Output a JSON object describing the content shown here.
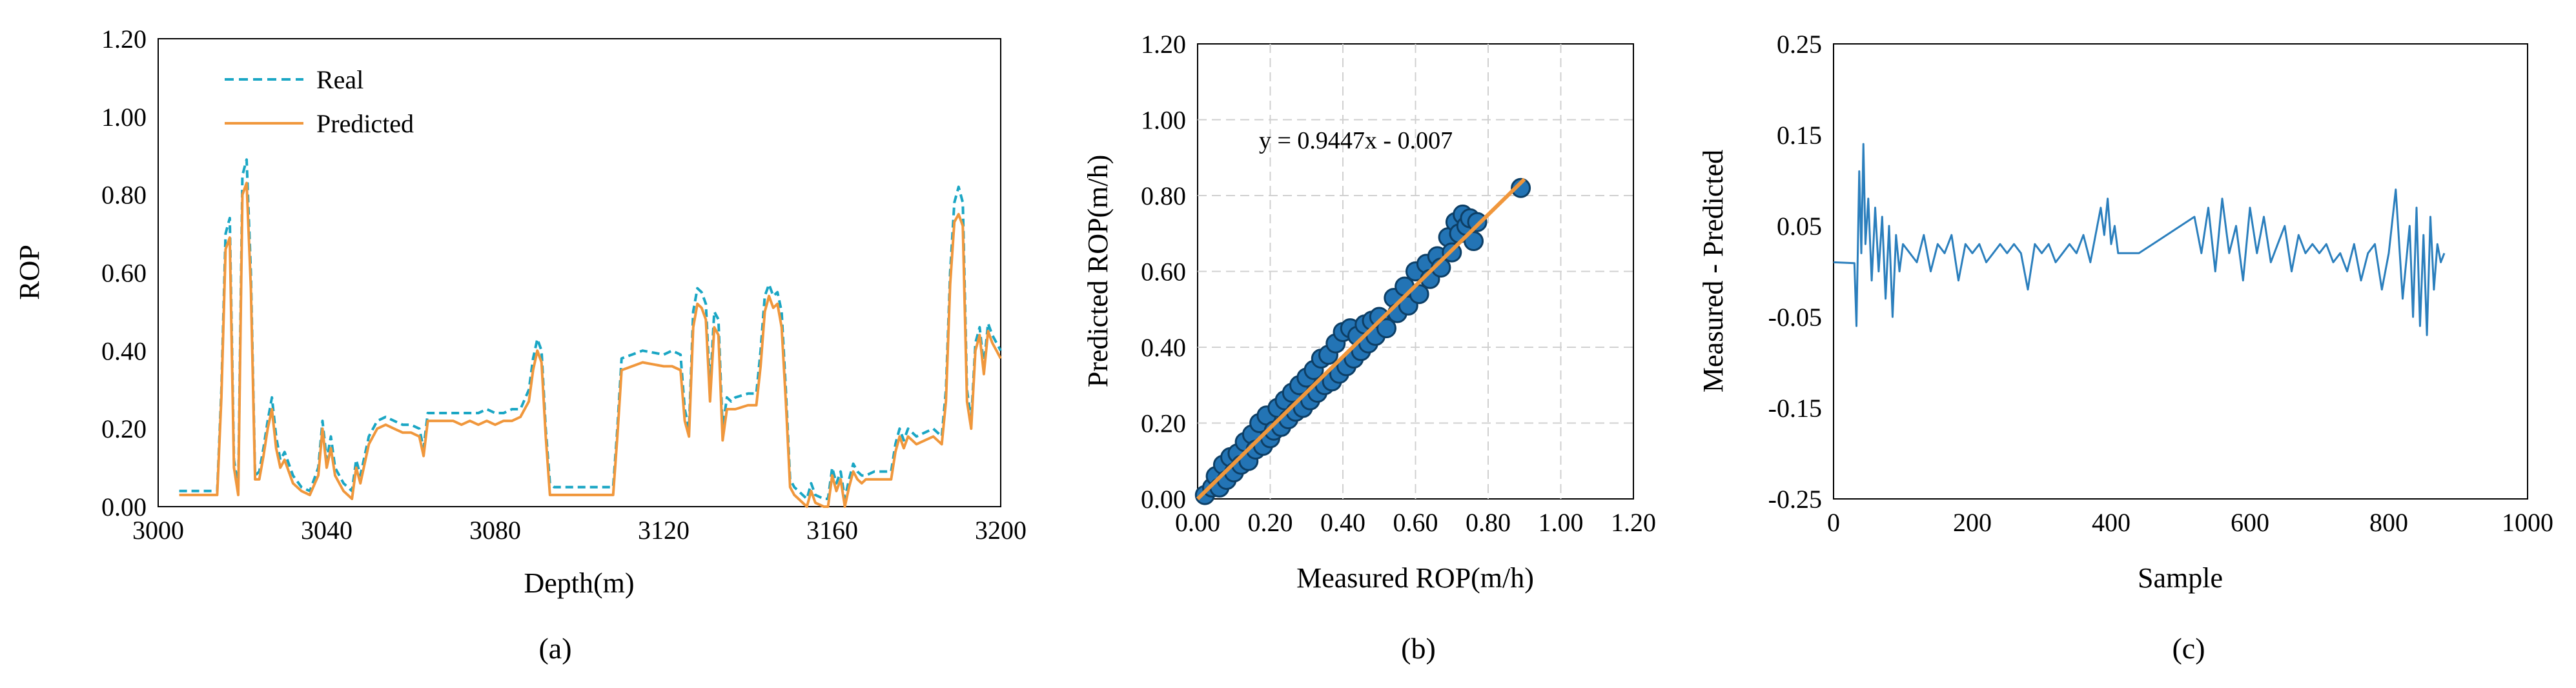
{
  "chart_data": [
    {
      "type": "line",
      "caption": "(a)",
      "xlabel": "Depth(m)",
      "ylabel": "ROP",
      "xlim": [
        3000,
        3200
      ],
      "ylim": [
        0,
        1.2
      ],
      "xticks": [
        "3000",
        "3040",
        "3080",
        "3120",
        "3160",
        "3200"
      ],
      "yticks": [
        "0.00",
        "0.20",
        "0.40",
        "0.60",
        "0.80",
        "1.00",
        "1.20"
      ],
      "legend_position": "top-left",
      "series": [
        {
          "name": "Real",
          "color": "#1aa6c4",
          "style": "dashed",
          "x": [
            3005,
            3014,
            3015,
            3016,
            3017,
            3018,
            3019,
            3020,
            3021,
            3022,
            3023,
            3024,
            3025,
            3026,
            3027,
            3028,
            3029,
            3030,
            3032,
            3034,
            3036,
            3038,
            3039,
            3040,
            3041,
            3042,
            3044,
            3046,
            3047,
            3048,
            3050,
            3052,
            3054,
            3056,
            3058,
            3060,
            3062,
            3063,
            3064,
            3066,
            3068,
            3070,
            3072,
            3074,
            3076,
            3078,
            3080,
            3082,
            3084,
            3086,
            3088,
            3089,
            3090,
            3091,
            3092,
            3093,
            3094,
            3100,
            3105,
            3108,
            3109,
            3110,
            3115,
            3120,
            3122,
            3124,
            3125,
            3126,
            3127,
            3128,
            3129,
            3130,
            3131,
            3132,
            3133,
            3134,
            3135,
            3136,
            3137,
            3140,
            3142,
            3143,
            3144,
            3145,
            3146,
            3147,
            3148,
            3149,
            3150,
            3151,
            3152,
            3153,
            3154,
            3155,
            3156,
            3158,
            3159,
            3160,
            3161,
            3162,
            3163,
            3164,
            3165,
            3166,
            3167,
            3168,
            3170,
            3172,
            3174,
            3175,
            3176,
            3177,
            3178,
            3180,
            3182,
            3184,
            3186,
            3187,
            3188,
            3189,
            3190,
            3191,
            3192,
            3193,
            3194,
            3195,
            3196,
            3197,
            3198,
            3199,
            3200
          ],
          "y": [
            0.04,
            0.04,
            0.3,
            0.7,
            0.74,
            0.12,
            0.05,
            0.85,
            0.89,
            0.6,
            0.08,
            0.09,
            0.15,
            0.22,
            0.28,
            0.18,
            0.12,
            0.14,
            0.08,
            0.05,
            0.04,
            0.1,
            0.22,
            0.12,
            0.18,
            0.1,
            0.06,
            0.04,
            0.12,
            0.08,
            0.18,
            0.22,
            0.23,
            0.22,
            0.21,
            0.21,
            0.2,
            0.15,
            0.24,
            0.24,
            0.24,
            0.24,
            0.24,
            0.24,
            0.24,
            0.25,
            0.24,
            0.24,
            0.25,
            0.25,
            0.3,
            0.38,
            0.43,
            0.4,
            0.2,
            0.06,
            0.05,
            0.05,
            0.05,
            0.05,
            0.2,
            0.38,
            0.4,
            0.39,
            0.4,
            0.39,
            0.25,
            0.2,
            0.5,
            0.56,
            0.55,
            0.52,
            0.3,
            0.5,
            0.48,
            0.2,
            0.28,
            0.27,
            0.28,
            0.29,
            0.29,
            0.4,
            0.54,
            0.57,
            0.54,
            0.55,
            0.5,
            0.3,
            0.07,
            0.05,
            0.04,
            0.03,
            0.02,
            0.06,
            0.03,
            0.02,
            0.02,
            0.1,
            0.06,
            0.09,
            0.02,
            0.07,
            0.11,
            0.09,
            0.08,
            0.08,
            0.09,
            0.09,
            0.09,
            0.16,
            0.2,
            0.17,
            0.2,
            0.18,
            0.19,
            0.2,
            0.18,
            0.3,
            0.6,
            0.78,
            0.82,
            0.78,
            0.3,
            0.22,
            0.42,
            0.46,
            0.36,
            0.47,
            0.44,
            0.42,
            0.4
          ]
        },
        {
          "name": "Predicted",
          "color": "#f0973c",
          "style": "solid",
          "x": [
            3005,
            3014,
            3015,
            3016,
            3017,
            3018,
            3019,
            3020,
            3021,
            3022,
            3023,
            3024,
            3025,
            3026,
            3027,
            3028,
            3029,
            3030,
            3032,
            3034,
            3036,
            3038,
            3039,
            3040,
            3041,
            3042,
            3044,
            3046,
            3047,
            3048,
            3050,
            3052,
            3054,
            3056,
            3058,
            3060,
            3062,
            3063,
            3064,
            3066,
            3068,
            3070,
            3072,
            3074,
            3076,
            3078,
            3080,
            3082,
            3084,
            3086,
            3088,
            3089,
            3090,
            3091,
            3092,
            3093,
            3094,
            3100,
            3105,
            3108,
            3109,
            3110,
            3115,
            3120,
            3122,
            3124,
            3125,
            3126,
            3127,
            3128,
            3129,
            3130,
            3131,
            3132,
            3133,
            3134,
            3135,
            3136,
            3137,
            3140,
            3142,
            3143,
            3144,
            3145,
            3146,
            3147,
            3148,
            3149,
            3150,
            3151,
            3152,
            3153,
            3154,
            3155,
            3156,
            3158,
            3159,
            3160,
            3161,
            3162,
            3163,
            3164,
            3165,
            3166,
            3167,
            3168,
            3170,
            3172,
            3174,
            3175,
            3176,
            3177,
            3178,
            3180,
            3182,
            3184,
            3186,
            3187,
            3188,
            3189,
            3190,
            3191,
            3192,
            3193,
            3194,
            3195,
            3196,
            3197,
            3198,
            3199,
            3200
          ],
          "y": [
            0.03,
            0.03,
            0.28,
            0.66,
            0.69,
            0.1,
            0.03,
            0.8,
            0.83,
            0.56,
            0.07,
            0.07,
            0.13,
            0.2,
            0.25,
            0.15,
            0.1,
            0.12,
            0.06,
            0.04,
            0.03,
            0.08,
            0.2,
            0.1,
            0.15,
            0.08,
            0.04,
            0.02,
            0.1,
            0.06,
            0.16,
            0.2,
            0.21,
            0.2,
            0.19,
            0.19,
            0.18,
            0.13,
            0.22,
            0.22,
            0.22,
            0.22,
            0.21,
            0.22,
            0.21,
            0.22,
            0.21,
            0.22,
            0.22,
            0.23,
            0.27,
            0.35,
            0.4,
            0.37,
            0.18,
            0.03,
            0.03,
            0.03,
            0.03,
            0.03,
            0.18,
            0.35,
            0.37,
            0.36,
            0.36,
            0.35,
            0.22,
            0.18,
            0.46,
            0.52,
            0.51,
            0.48,
            0.27,
            0.46,
            0.44,
            0.17,
            0.25,
            0.25,
            0.25,
            0.26,
            0.26,
            0.36,
            0.5,
            0.54,
            0.51,
            0.52,
            0.46,
            0.27,
            0.05,
            0.03,
            0.02,
            0.01,
            0.0,
            0.04,
            0.01,
            0.0,
            0.0,
            0.08,
            0.04,
            0.07,
            0.0,
            0.05,
            0.09,
            0.07,
            0.06,
            0.07,
            0.07,
            0.07,
            0.07,
            0.14,
            0.18,
            0.15,
            0.18,
            0.16,
            0.17,
            0.18,
            0.16,
            0.27,
            0.57,
            0.73,
            0.75,
            0.72,
            0.27,
            0.2,
            0.4,
            0.44,
            0.34,
            0.45,
            0.42,
            0.4,
            0.38
          ]
        }
      ]
    },
    {
      "type": "scatter",
      "caption": "(b)",
      "xlabel": "Measured ROP(m/h)",
      "ylabel": "Predicted ROP(m/h)",
      "xlim": [
        0,
        1.2
      ],
      "ylim": [
        0,
        1.2
      ],
      "xticks": [
        "0.00",
        "0.20",
        "0.40",
        "0.60",
        "0.80",
        "1.00",
        "1.20"
      ],
      "yticks": [
        "0.00",
        "0.20",
        "0.40",
        "0.60",
        "0.80",
        "1.00",
        "1.20"
      ],
      "grid": true,
      "annotation": "y = 0.9447x - 0.007",
      "trendline": {
        "slope": 0.9447,
        "intercept": -0.007,
        "x_range": [
          0.0,
          0.9
        ],
        "color": "#f0973c"
      },
      "point_color": "#2374b5",
      "points": [
        [
          0.02,
          0.01
        ],
        [
          0.04,
          0.03
        ],
        [
          0.05,
          0.06
        ],
        [
          0.06,
          0.03
        ],
        [
          0.07,
          0.09
        ],
        [
          0.08,
          0.05
        ],
        [
          0.09,
          0.11
        ],
        [
          0.1,
          0.07
        ],
        [
          0.11,
          0.12
        ],
        [
          0.12,
          0.09
        ],
        [
          0.13,
          0.15
        ],
        [
          0.14,
          0.1
        ],
        [
          0.15,
          0.17
        ],
        [
          0.16,
          0.13
        ],
        [
          0.17,
          0.2
        ],
        [
          0.18,
          0.14
        ],
        [
          0.19,
          0.22
        ],
        [
          0.2,
          0.16
        ],
        [
          0.21,
          0.18
        ],
        [
          0.22,
          0.24
        ],
        [
          0.23,
          0.19
        ],
        [
          0.24,
          0.26
        ],
        [
          0.25,
          0.21
        ],
        [
          0.26,
          0.28
        ],
        [
          0.27,
          0.23
        ],
        [
          0.28,
          0.3
        ],
        [
          0.29,
          0.24
        ],
        [
          0.3,
          0.32
        ],
        [
          0.31,
          0.26
        ],
        [
          0.32,
          0.34
        ],
        [
          0.33,
          0.28
        ],
        [
          0.34,
          0.37
        ],
        [
          0.35,
          0.3
        ],
        [
          0.36,
          0.38
        ],
        [
          0.37,
          0.31
        ],
        [
          0.38,
          0.41
        ],
        [
          0.39,
          0.33
        ],
        [
          0.4,
          0.44
        ],
        [
          0.41,
          0.35
        ],
        [
          0.42,
          0.45
        ],
        [
          0.43,
          0.37
        ],
        [
          0.44,
          0.43
        ],
        [
          0.45,
          0.39
        ],
        [
          0.46,
          0.46
        ],
        [
          0.47,
          0.41
        ],
        [
          0.48,
          0.47
        ],
        [
          0.49,
          0.43
        ],
        [
          0.5,
          0.48
        ],
        [
          0.52,
          0.45
        ],
        [
          0.54,
          0.53
        ],
        [
          0.55,
          0.49
        ],
        [
          0.57,
          0.56
        ],
        [
          0.58,
          0.51
        ],
        [
          0.6,
          0.6
        ],
        [
          0.61,
          0.54
        ],
        [
          0.63,
          0.62
        ],
        [
          0.64,
          0.58
        ],
        [
          0.66,
          0.64
        ],
        [
          0.67,
          0.61
        ],
        [
          0.69,
          0.69
        ],
        [
          0.7,
          0.65
        ],
        [
          0.71,
          0.73
        ],
        [
          0.72,
          0.7
        ],
        [
          0.73,
          0.75
        ],
        [
          0.74,
          0.72
        ],
        [
          0.75,
          0.74
        ],
        [
          0.76,
          0.68
        ],
        [
          0.77,
          0.73
        ],
        [
          0.89,
          0.82
        ]
      ]
    },
    {
      "type": "line",
      "caption": "(c)",
      "xlabel": "Sample",
      "ylabel": "Measured - Predicted",
      "xlim": [
        0,
        1000
      ],
      "ylim": [
        -0.25,
        0.25
      ],
      "xticks": [
        "0",
        "200",
        "400",
        "600",
        "800",
        "1000"
      ],
      "yticks": [
        "-0.25",
        "-0.15",
        "-0.05",
        "0.05",
        "0.15",
        "0.25"
      ],
      "color": "#2b7fbd",
      "x": [
        0,
        30,
        33,
        37,
        40,
        43,
        46,
        50,
        55,
        60,
        65,
        70,
        75,
        80,
        85,
        90,
        95,
        100,
        110,
        120,
        130,
        140,
        150,
        160,
        170,
        180,
        190,
        200,
        210,
        220,
        230,
        240,
        250,
        260,
        270,
        280,
        290,
        300,
        310,
        320,
        330,
        340,
        350,
        360,
        370,
        380,
        385,
        390,
        395,
        400,
        405,
        410,
        420,
        440,
        460,
        480,
        500,
        520,
        530,
        540,
        550,
        560,
        570,
        580,
        590,
        600,
        610,
        620,
        630,
        640,
        650,
        660,
        670,
        680,
        690,
        700,
        710,
        720,
        730,
        740,
        750,
        760,
        770,
        780,
        790,
        800,
        810,
        820,
        830,
        835,
        840,
        845,
        850,
        855,
        860,
        865,
        870,
        875,
        880
      ],
      "y": [
        0.01,
        0.009,
        -0.06,
        0.11,
        0.02,
        0.14,
        0.03,
        0.08,
        -0.01,
        0.07,
        0.0,
        0.06,
        -0.03,
        0.05,
        -0.05,
        0.04,
        0.0,
        0.03,
        0.02,
        0.01,
        0.04,
        0.0,
        0.03,
        0.02,
        0.04,
        -0.01,
        0.03,
        0.02,
        0.03,
        0.01,
        0.02,
        0.03,
        0.02,
        0.03,
        0.02,
        -0.02,
        0.03,
        0.02,
        0.03,
        0.01,
        0.02,
        0.03,
        0.02,
        0.04,
        0.01,
        0.05,
        0.07,
        0.04,
        0.08,
        0.03,
        0.05,
        0.02,
        0.02,
        0.02,
        0.03,
        0.04,
        0.05,
        0.06,
        0.02,
        0.07,
        0.0,
        0.08,
        0.02,
        0.05,
        -0.01,
        0.07,
        0.02,
        0.06,
        0.01,
        0.03,
        0.05,
        0.0,
        0.04,
        0.02,
        0.03,
        0.02,
        0.03,
        0.01,
        0.02,
        0.0,
        0.03,
        -0.01,
        0.02,
        0.03,
        -0.02,
        0.02,
        0.09,
        -0.03,
        0.05,
        -0.05,
        0.07,
        -0.06,
        0.04,
        -0.07,
        0.06,
        -0.02,
        0.03,
        0.01,
        0.02
      ]
    }
  ]
}
